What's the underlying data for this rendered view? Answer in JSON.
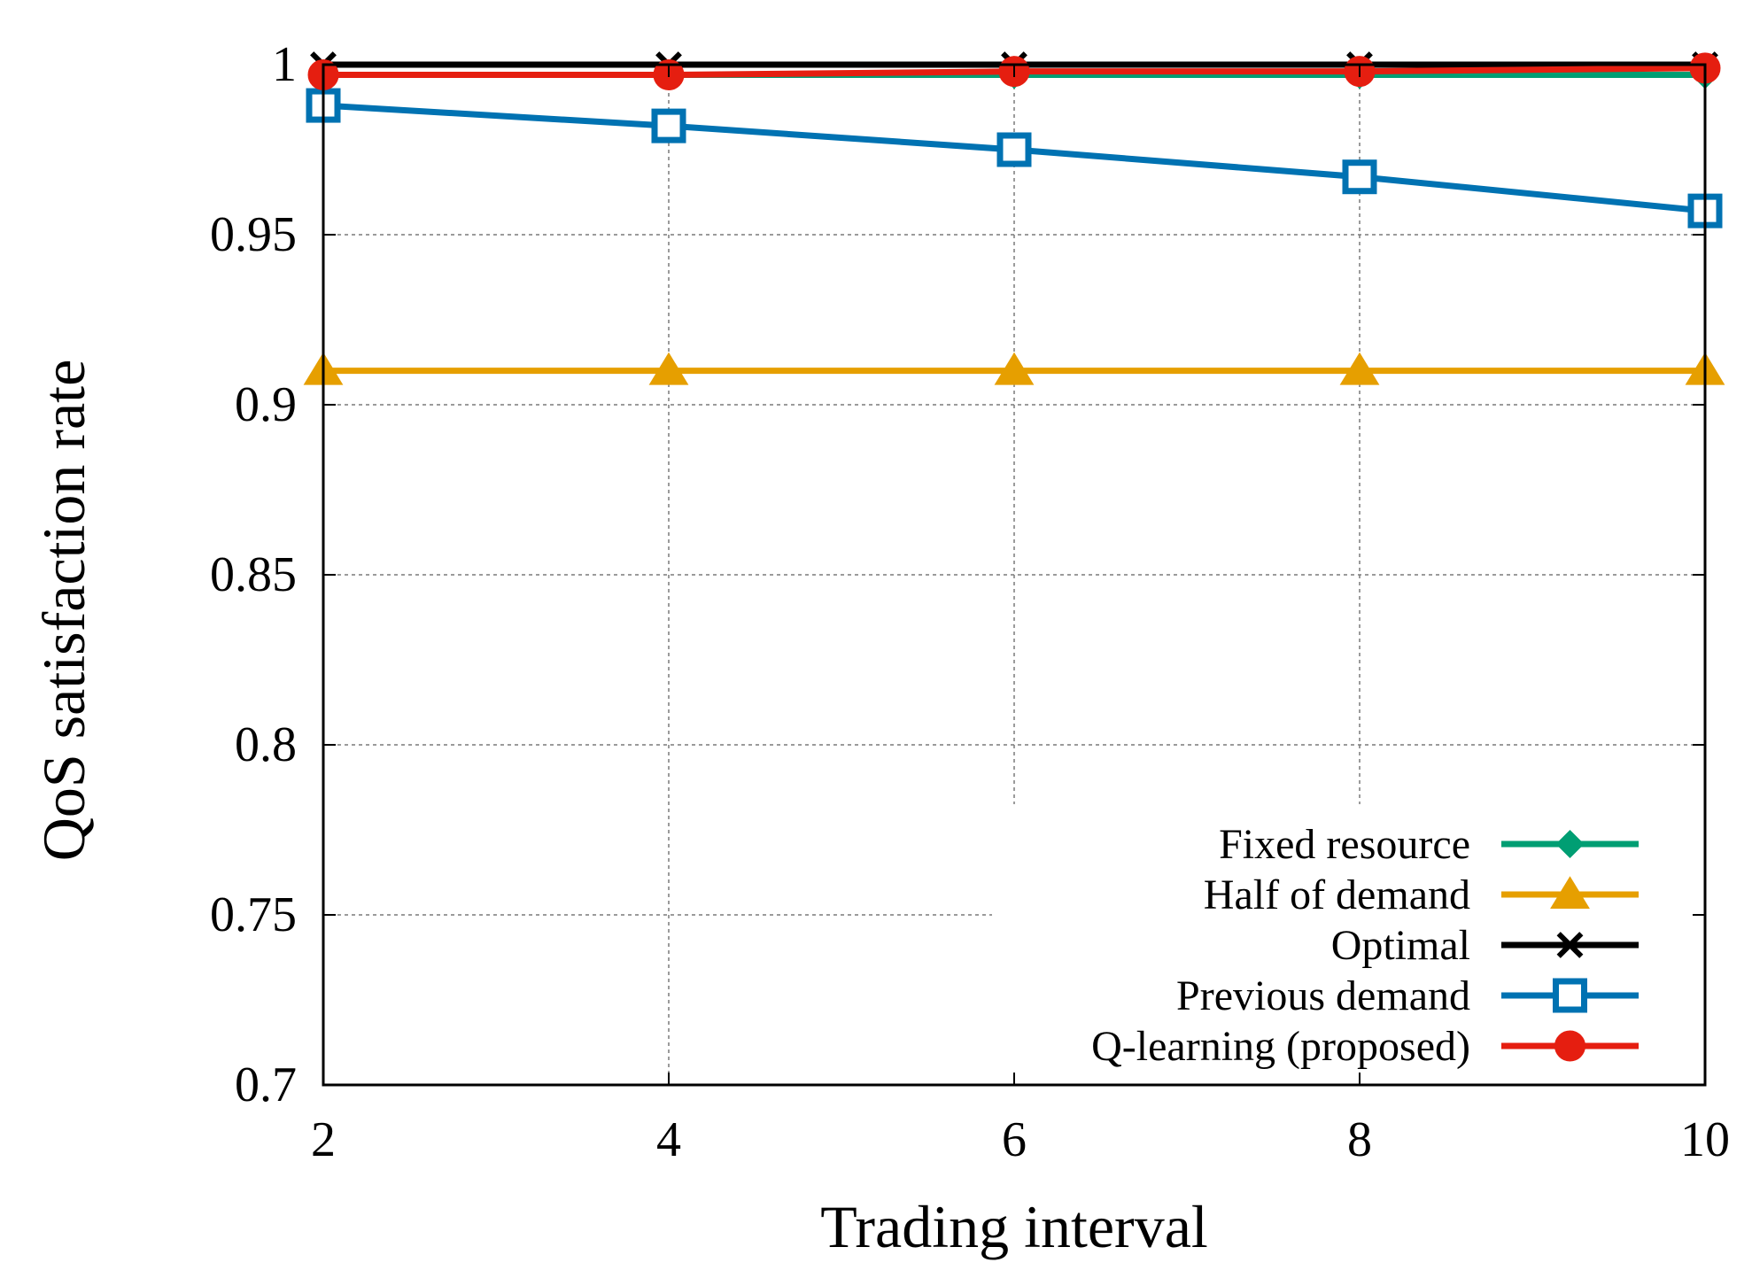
{
  "chart_data": {
    "type": "line",
    "title": "",
    "xlabel": "Trading interval",
    "ylabel": "QoS satisfaction rate",
    "x": [
      2,
      4,
      6,
      8,
      10
    ],
    "xlim": [
      2,
      10
    ],
    "ylim": [
      0.7,
      1.0
    ],
    "xticks": [
      "2",
      "4",
      "6",
      "8",
      "10"
    ],
    "yticks": [
      "0.7",
      "0.75",
      "0.8",
      "0.85",
      "0.9",
      "0.95",
      "1"
    ],
    "grid": true,
    "legend_position": "bottom-right",
    "series": [
      {
        "name": "Fixed resource",
        "color": "#009e73",
        "marker": "diamond",
        "values": [
          0.997,
          0.997,
          0.997,
          0.997,
          0.997
        ]
      },
      {
        "name": "Half of demand",
        "color": "#e69f00",
        "marker": "triangle",
        "values": [
          0.91,
          0.91,
          0.91,
          0.91,
          0.91
        ]
      },
      {
        "name": "Optimal",
        "color": "#000000",
        "marker": "cross",
        "values": [
          1.0,
          1.0,
          1.0,
          1.0,
          1.0
        ]
      },
      {
        "name": "Previous demand",
        "color": "#0072b2",
        "marker": "square",
        "values": [
          0.988,
          0.982,
          0.975,
          0.967,
          0.957
        ]
      },
      {
        "name": "Q-learning (proposed)",
        "color": "#e51e10",
        "marker": "circle",
        "values": [
          0.997,
          0.997,
          0.998,
          0.998,
          0.999
        ]
      }
    ]
  }
}
